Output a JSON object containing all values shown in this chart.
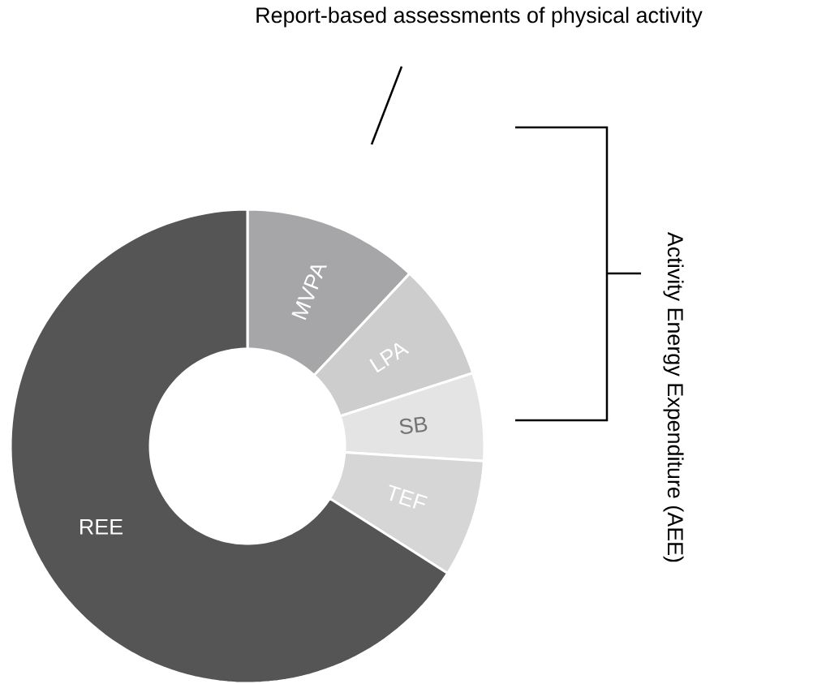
{
  "chart_data": {
    "type": "donut",
    "categories": [
      "MVPA",
      "LPA",
      "SB",
      "TEF",
      "REE"
    ],
    "values": [
      12,
      8,
      6,
      8,
      66
    ],
    "colors": [
      "#a6a6a8",
      "#cdcdcd",
      "#e4e4e4",
      "#d6d6d6",
      "#555555"
    ],
    "annotations": [
      "Report-based assessments of physical activity",
      "Activity Energy Expenditure (AEE)"
    ]
  }
}
